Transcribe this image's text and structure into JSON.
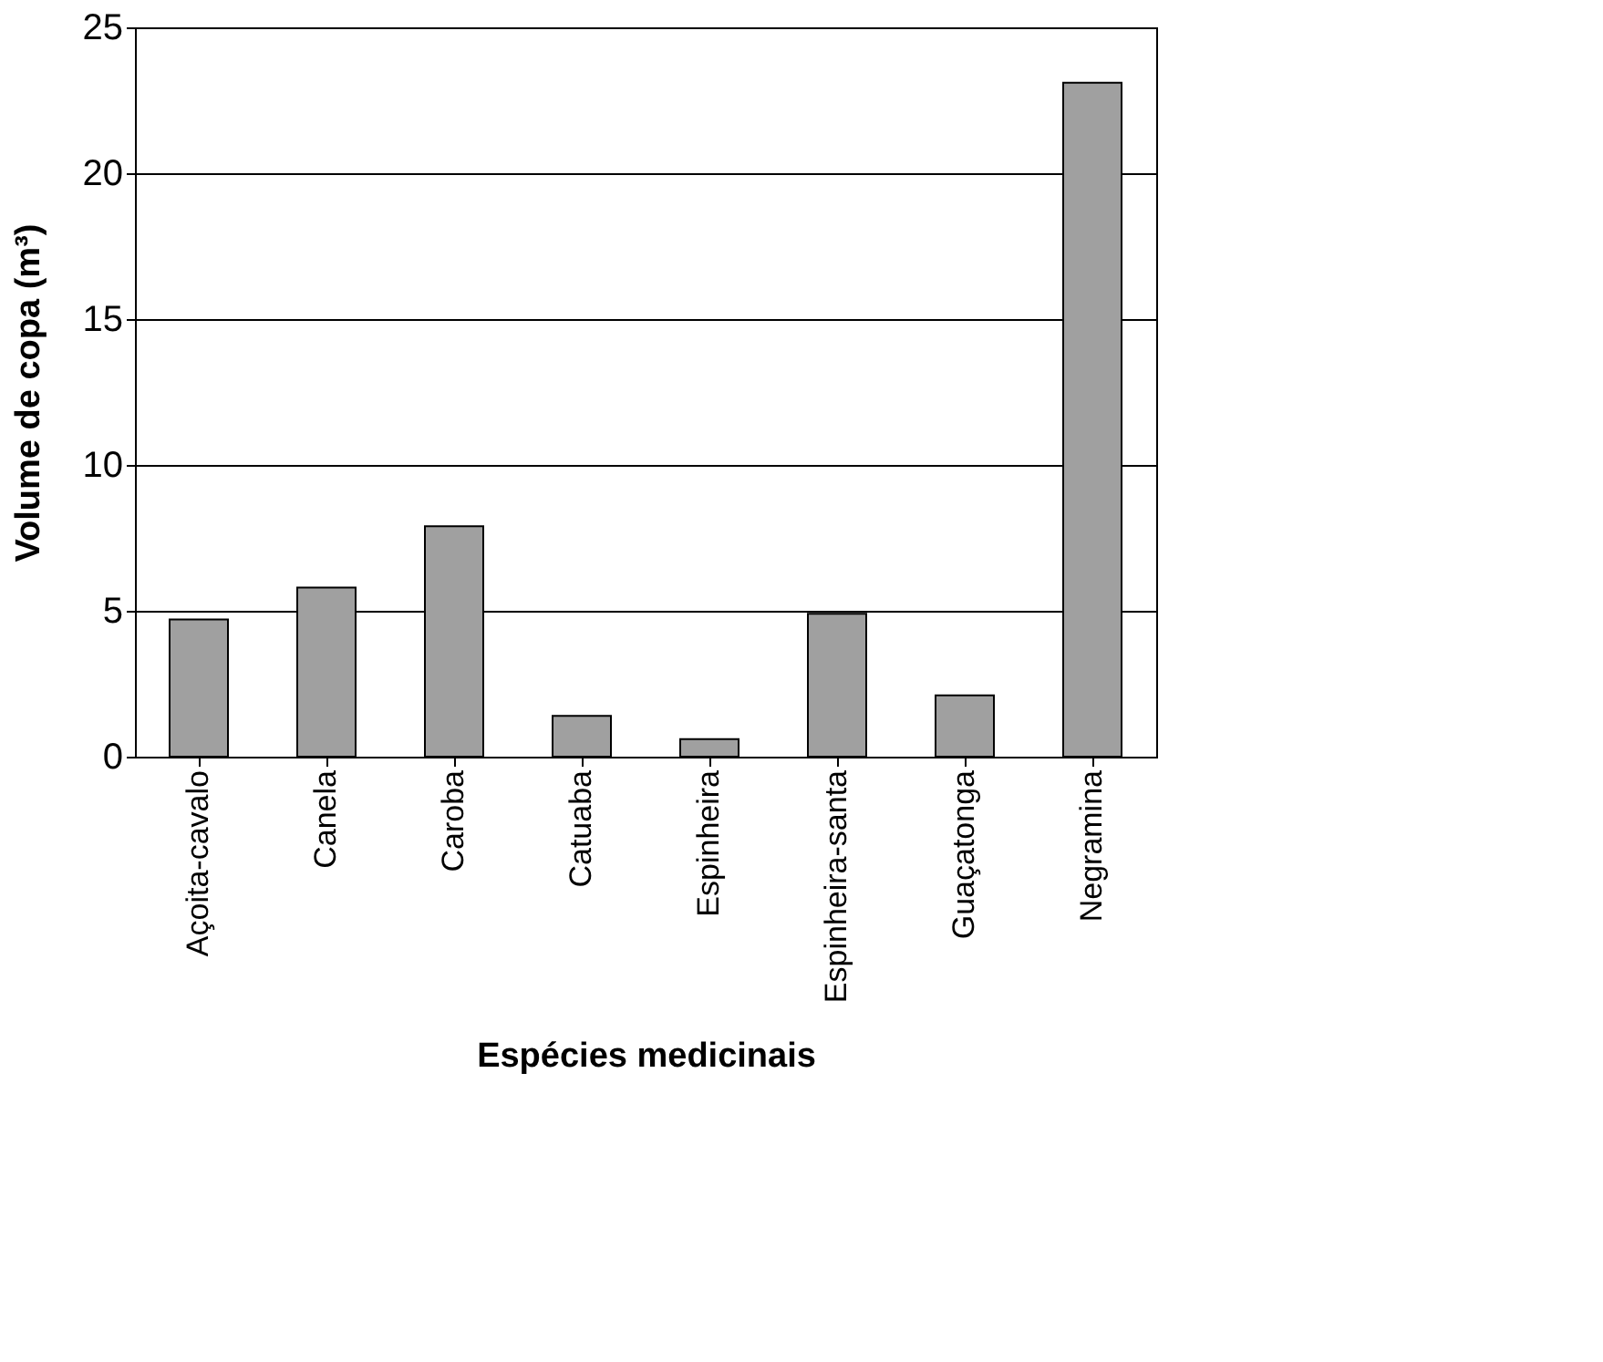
{
  "chart_data": {
    "type": "bar",
    "xlabel": "Espécies medicinais",
    "ylabel": "Volume de copa (m³)",
    "categories": [
      "Açoita-cavalo",
      "Canela",
      "Caroba",
      "Catuaba",
      "Espinheira",
      "Espinheira-santa",
      "Guaçatonga",
      "Negramina"
    ],
    "values": [
      4.7,
      5.8,
      7.9,
      1.4,
      0.6,
      4.9,
      2.1,
      23.1
    ],
    "color": "#a0a0a0",
    "ylim": [
      0,
      25
    ],
    "yticks": [
      0,
      5,
      10,
      15,
      20,
      25
    ],
    "grid": "y"
  }
}
